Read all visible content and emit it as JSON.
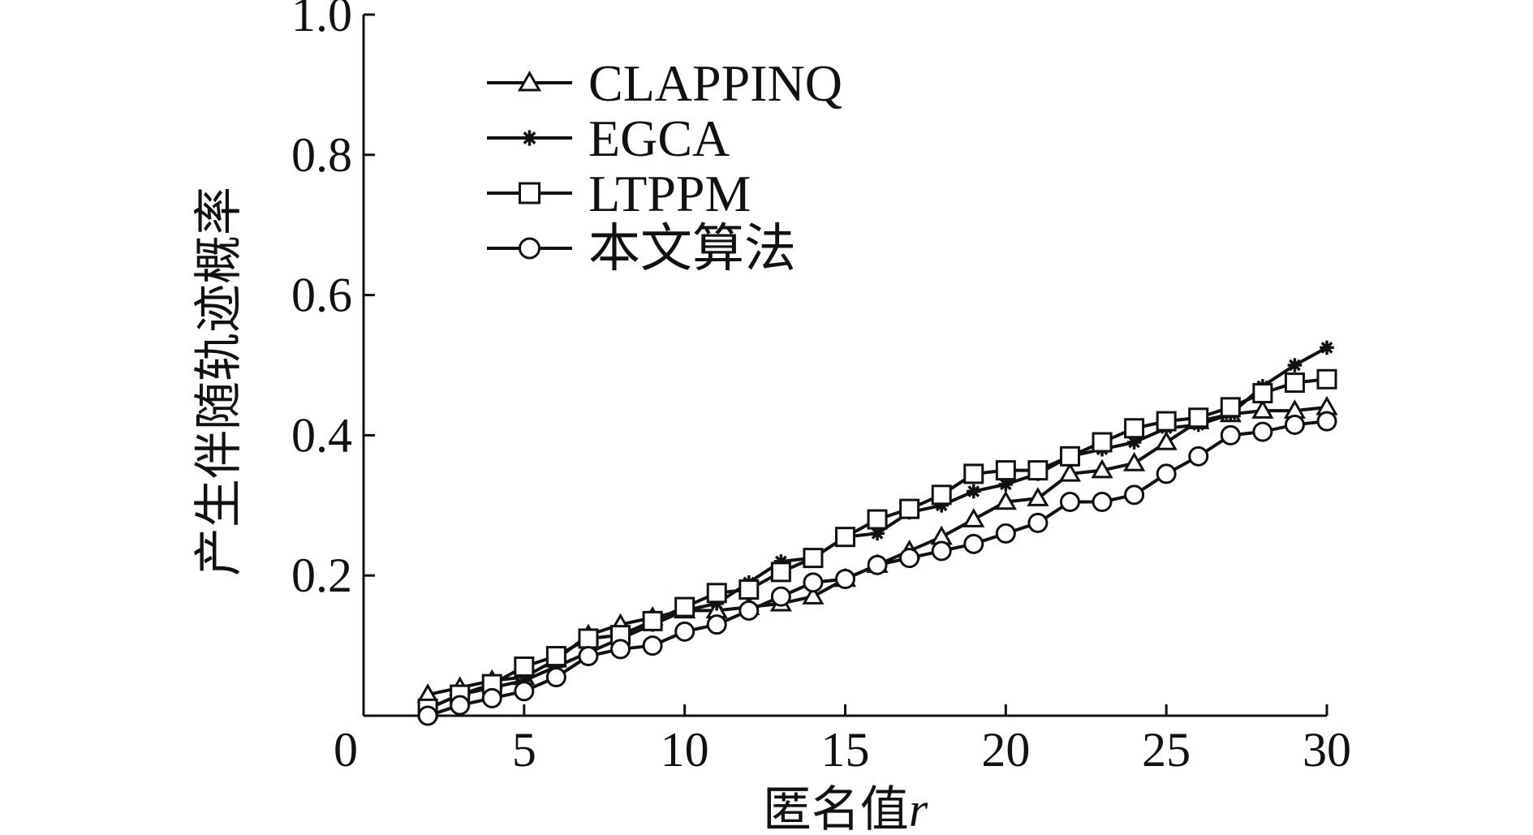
{
  "chart_data": {
    "type": "line",
    "xlabel_text": "匿名值",
    "xlabel_var": "r",
    "ylabel": "产生伴随轨迹概率",
    "xlim": [
      0,
      30
    ],
    "ylim": [
      0,
      1.0
    ],
    "xticks": [
      0,
      5,
      10,
      15,
      20,
      25,
      30
    ],
    "xtick_labels": [
      "0",
      "5",
      "10",
      "15",
      "20",
      "25",
      "30"
    ],
    "yticks": [
      0.2,
      0.4,
      0.6,
      0.8,
      1.0
    ],
    "ytick_labels": [
      "0.2",
      "0.4",
      "0.6",
      "0.8",
      "1.0"
    ],
    "grid": false,
    "legend_position": "top-left",
    "x": [
      2,
      3,
      4,
      5,
      6,
      7,
      8,
      9,
      10,
      11,
      12,
      13,
      14,
      15,
      16,
      17,
      18,
      19,
      20,
      21,
      22,
      23,
      24,
      25,
      26,
      27,
      28,
      29,
      30
    ],
    "series": [
      {
        "name": "CLAPPINQ",
        "marker": "triangle",
        "values": [
          0.03,
          0.04,
          0.05,
          0.055,
          0.08,
          0.115,
          0.13,
          0.14,
          0.15,
          0.15,
          0.155,
          0.16,
          0.17,
          0.195,
          0.215,
          0.235,
          0.255,
          0.28,
          0.305,
          0.31,
          0.345,
          0.35,
          0.36,
          0.39,
          0.42,
          0.43,
          0.435,
          0.435,
          0.44
        ]
      },
      {
        "name": "EGCA",
        "marker": "star",
        "values": [
          0.01,
          0.03,
          0.04,
          0.05,
          0.07,
          0.09,
          0.11,
          0.13,
          0.15,
          0.16,
          0.19,
          0.22,
          0.225,
          0.255,
          0.26,
          0.29,
          0.3,
          0.32,
          0.33,
          0.345,
          0.37,
          0.38,
          0.39,
          0.41,
          0.415,
          0.43,
          0.47,
          0.5,
          0.525
        ]
      },
      {
        "name": "LTPPM",
        "marker": "square",
        "values": [
          0.01,
          0.03,
          0.045,
          0.07,
          0.085,
          0.11,
          0.115,
          0.135,
          0.155,
          0.175,
          0.18,
          0.205,
          0.225,
          0.255,
          0.28,
          0.295,
          0.315,
          0.345,
          0.35,
          0.35,
          0.37,
          0.39,
          0.41,
          0.42,
          0.425,
          0.44,
          0.46,
          0.475,
          0.48
        ]
      },
      {
        "name": "本文算法",
        "marker": "circle",
        "values": [
          0.0,
          0.015,
          0.025,
          0.035,
          0.055,
          0.085,
          0.095,
          0.1,
          0.12,
          0.13,
          0.15,
          0.17,
          0.19,
          0.195,
          0.215,
          0.225,
          0.235,
          0.245,
          0.26,
          0.275,
          0.305,
          0.305,
          0.315,
          0.345,
          0.37,
          0.4,
          0.405,
          0.415,
          0.42
        ]
      }
    ]
  }
}
